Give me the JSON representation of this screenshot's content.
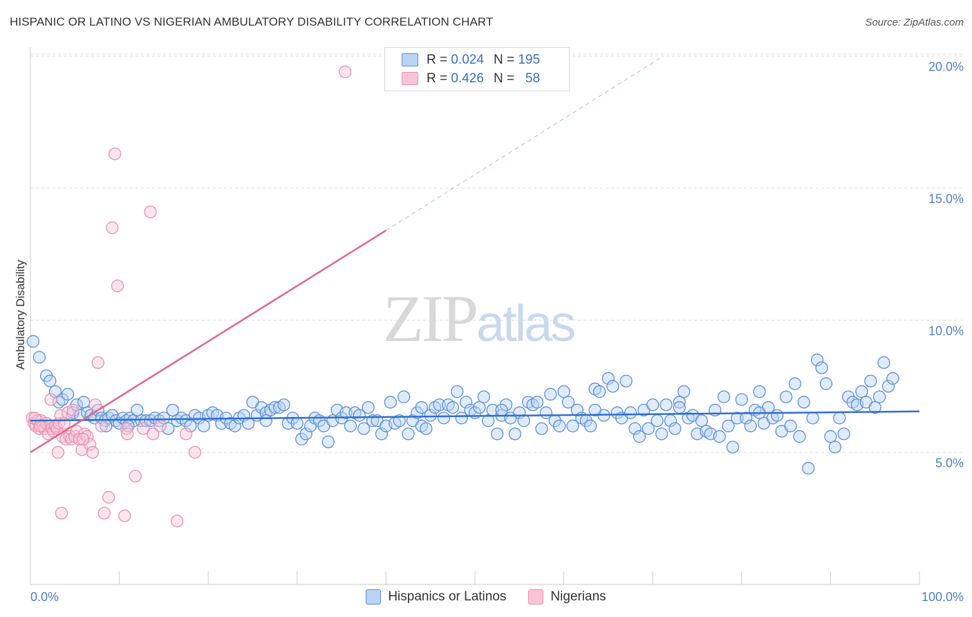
{
  "header": {
    "title": "HISPANIC OR LATINO VS NIGERIAN AMBULATORY DISABILITY CORRELATION CHART",
    "source": "Source: ZipAtlas.com"
  },
  "watermark": {
    "zip": "ZIP",
    "atlas": "atlas"
  },
  "legend": {
    "rows": [
      {
        "r_label": "R =",
        "r_value": "0.024",
        "n_label": "N =",
        "n_value": "195"
      },
      {
        "r_label": "R =",
        "r_value": "0.426",
        "n_label": "N =",
        "n_value": "58"
      }
    ]
  },
  "colors": {
    "blue_fill": "#b8d3f4",
    "blue_stroke": "#5b8fd6",
    "blue_line": "#2f6fd1",
    "pink_fill": "#f8c5d6",
    "pink_stroke": "#e891ad",
    "pink_line": "#e0678f",
    "grid": "#dddddd",
    "tick_label": "#4f7fc8"
  },
  "chart_data": {
    "type": "scatter",
    "title": "HISPANIC OR LATINO VS NIGERIAN AMBULATORY DISABILITY CORRELATION CHART",
    "xlabel": "",
    "ylabel": "Ambulatory Disability",
    "xlim": [
      0,
      100
    ],
    "ylim": [
      0,
      21
    ],
    "x_tick_labels": [
      "0.0%",
      "100.0%"
    ],
    "y_ticks": [
      5,
      10,
      15,
      20
    ],
    "y_tick_labels": [
      "5.0%",
      "10.0%",
      "15.0%",
      "20.0%"
    ],
    "legend_position": "top-center",
    "series": [
      {
        "name": "Hispanics or Latinos",
        "r": 0.024,
        "n": 195,
        "trend": {
          "x": [
            0,
            100
          ],
          "y": [
            6.2,
            6.55
          ]
        },
        "points": [
          [
            0.3,
            9.2
          ],
          [
            1.0,
            8.6
          ],
          [
            1.8,
            7.9
          ],
          [
            2.2,
            7.7
          ],
          [
            2.8,
            7.3
          ],
          [
            3.2,
            6.9
          ],
          [
            3.6,
            7.0
          ],
          [
            4.2,
            7.2
          ],
          [
            4.8,
            6.5
          ],
          [
            5.2,
            6.8
          ],
          [
            5.6,
            6.4
          ],
          [
            6.0,
            6.9
          ],
          [
            6.4,
            6.5
          ],
          [
            6.8,
            6.4
          ],
          [
            7.2,
            6.3
          ],
          [
            7.6,
            6.6
          ],
          [
            8.0,
            6.3
          ],
          [
            8.4,
            6.2
          ],
          [
            8.8,
            6.3
          ],
          [
            9.2,
            6.4
          ],
          [
            9.6,
            6.2
          ],
          [
            10.0,
            6.1
          ],
          [
            10.4,
            6.3
          ],
          [
            10.8,
            6.2
          ],
          [
            11.2,
            6.3
          ],
          [
            11.6,
            6.2
          ],
          [
            12.0,
            6.6
          ],
          [
            12.5,
            6.2
          ],
          [
            13.0,
            6.2
          ],
          [
            13.5,
            6.2
          ],
          [
            14.0,
            6.3
          ],
          [
            14.5,
            6.2
          ],
          [
            15.0,
            6.3
          ],
          [
            15.5,
            5.9
          ],
          [
            16.0,
            6.6
          ],
          [
            16.5,
            6.2
          ],
          [
            17.0,
            6.3
          ],
          [
            17.5,
            6.2
          ],
          [
            18.0,
            6.0
          ],
          [
            18.5,
            6.4
          ],
          [
            19.0,
            6.3
          ],
          [
            19.5,
            6.0
          ],
          [
            20.0,
            6.4
          ],
          [
            20.5,
            6.5
          ],
          [
            21.0,
            6.4
          ],
          [
            21.5,
            6.1
          ],
          [
            22.0,
            6.3
          ],
          [
            22.5,
            6.1
          ],
          [
            23.0,
            6.0
          ],
          [
            23.5,
            6.3
          ],
          [
            24.0,
            6.4
          ],
          [
            24.5,
            6.1
          ],
          [
            25.0,
            6.9
          ],
          [
            25.5,
            6.4
          ],
          [
            26.0,
            6.7
          ],
          [
            26.5,
            6.5
          ],
          [
            27.0,
            6.6
          ],
          [
            27.5,
            6.7
          ],
          [
            28.0,
            6.7
          ],
          [
            28.5,
            6.8
          ],
          [
            29.0,
            6.1
          ],
          [
            29.5,
            6.3
          ],
          [
            30.0,
            6.1
          ],
          [
            30.5,
            5.5
          ],
          [
            31.0,
            5.7
          ],
          [
            31.5,
            6.0
          ],
          [
            32.0,
            6.3
          ],
          [
            32.5,
            6.2
          ],
          [
            33.0,
            6.0
          ],
          [
            33.5,
            5.4
          ],
          [
            34.0,
            6.2
          ],
          [
            34.5,
            6.6
          ],
          [
            35.0,
            6.3
          ],
          [
            35.5,
            6.5
          ],
          [
            36.0,
            6.0
          ],
          [
            36.5,
            6.5
          ],
          [
            37.0,
            6.4
          ],
          [
            37.5,
            5.9
          ],
          [
            38.0,
            6.7
          ],
          [
            38.5,
            6.2
          ],
          [
            39.0,
            6.2
          ],
          [
            39.5,
            5.7
          ],
          [
            40.0,
            6.0
          ],
          [
            40.5,
            6.9
          ],
          [
            41.0,
            6.1
          ],
          [
            41.5,
            6.2
          ],
          [
            42.0,
            7.1
          ],
          [
            42.5,
            5.7
          ],
          [
            43.0,
            6.2
          ],
          [
            43.5,
            6.5
          ],
          [
            44.0,
            6.0
          ],
          [
            44.5,
            5.9
          ],
          [
            45.0,
            6.4
          ],
          [
            45.5,
            6.7
          ],
          [
            46.0,
            6.8
          ],
          [
            46.5,
            6.3
          ],
          [
            47.0,
            6.8
          ],
          [
            47.5,
            6.7
          ],
          [
            48.0,
            7.3
          ],
          [
            48.5,
            6.3
          ],
          [
            49.0,
            6.9
          ],
          [
            49.5,
            6.6
          ],
          [
            50.0,
            6.5
          ],
          [
            50.5,
            6.7
          ],
          [
            51.0,
            7.1
          ],
          [
            51.5,
            6.2
          ],
          [
            52.0,
            6.6
          ],
          [
            52.5,
            5.7
          ],
          [
            53.0,
            6.4
          ],
          [
            53.5,
            6.8
          ],
          [
            54.0,
            6.3
          ],
          [
            54.5,
            5.7
          ],
          [
            55.0,
            6.5
          ],
          [
            55.5,
            6.2
          ],
          [
            56.0,
            6.9
          ],
          [
            56.5,
            6.8
          ],
          [
            57.0,
            6.9
          ],
          [
            57.5,
            5.9
          ],
          [
            58.0,
            6.5
          ],
          [
            58.5,
            7.2
          ],
          [
            59.0,
            6.2
          ],
          [
            59.5,
            6.0
          ],
          [
            60.0,
            7.3
          ],
          [
            60.5,
            6.9
          ],
          [
            61.0,
            6.0
          ],
          [
            61.5,
            6.6
          ],
          [
            62.0,
            6.3
          ],
          [
            62.5,
            6.2
          ],
          [
            63.0,
            6.0
          ],
          [
            63.5,
            7.4
          ],
          [
            64.0,
            7.3
          ],
          [
            64.5,
            6.4
          ],
          [
            65.0,
            7.8
          ],
          [
            65.5,
            7.5
          ],
          [
            66.0,
            6.5
          ],
          [
            66.5,
            6.3
          ],
          [
            67.0,
            7.7
          ],
          [
            67.5,
            6.5
          ],
          [
            68.0,
            5.9
          ],
          [
            68.5,
            5.6
          ],
          [
            69.0,
            6.6
          ],
          [
            69.5,
            5.9
          ],
          [
            70.0,
            6.8
          ],
          [
            70.5,
            6.2
          ],
          [
            71.0,
            5.7
          ],
          [
            71.5,
            6.8
          ],
          [
            72.0,
            6.2
          ],
          [
            72.5,
            5.9
          ],
          [
            73.0,
            6.9
          ],
          [
            73.5,
            7.3
          ],
          [
            74.0,
            6.3
          ],
          [
            74.5,
            6.4
          ],
          [
            75.0,
            5.7
          ],
          [
            75.5,
            6.2
          ],
          [
            76.0,
            5.8
          ],
          [
            76.5,
            5.7
          ],
          [
            77.0,
            6.6
          ],
          [
            77.5,
            5.6
          ],
          [
            78.0,
            7.1
          ],
          [
            78.5,
            6.0
          ],
          [
            79.0,
            5.2
          ],
          [
            79.5,
            6.3
          ],
          [
            80.0,
            7.0
          ],
          [
            80.5,
            6.3
          ],
          [
            81.0,
            6.0
          ],
          [
            81.5,
            6.6
          ],
          [
            82.0,
            7.3
          ],
          [
            82.5,
            6.1
          ],
          [
            83.0,
            6.7
          ],
          [
            83.5,
            6.3
          ],
          [
            84.0,
            6.4
          ],
          [
            84.5,
            5.8
          ],
          [
            85.0,
            7.1
          ],
          [
            85.5,
            6.0
          ],
          [
            86.0,
            7.6
          ],
          [
            86.5,
            5.6
          ],
          [
            87.0,
            6.9
          ],
          [
            87.5,
            4.4
          ],
          [
            88.0,
            6.3
          ],
          [
            88.5,
            8.5
          ],
          [
            89.0,
            8.2
          ],
          [
            89.5,
            7.6
          ],
          [
            90.0,
            5.6
          ],
          [
            90.5,
            5.2
          ],
          [
            91.0,
            6.3
          ],
          [
            91.5,
            5.7
          ],
          [
            92.0,
            7.1
          ],
          [
            92.5,
            6.9
          ],
          [
            93.0,
            6.8
          ],
          [
            93.5,
            7.3
          ],
          [
            94.0,
            6.9
          ],
          [
            94.5,
            7.7
          ],
          [
            95.0,
            6.7
          ],
          [
            95.5,
            7.1
          ],
          [
            96.0,
            8.4
          ],
          [
            96.5,
            7.5
          ],
          [
            97.0,
            7.8
          ],
          [
            8.5,
            6.0
          ],
          [
            11.0,
            6.0
          ],
          [
            26.5,
            6.2
          ],
          [
            44.0,
            6.7
          ],
          [
            53.0,
            6.6
          ],
          [
            63.5,
            6.6
          ],
          [
            73.0,
            6.7
          ],
          [
            82.0,
            6.5
          ]
        ]
      },
      {
        "name": "Nigerians",
        "r": 0.426,
        "n": 58,
        "trend": {
          "x": [
            0,
            40
          ],
          "y": [
            5.0,
            13.4
          ]
        },
        "trend_extended": {
          "x": [
            40,
            71.2
          ],
          "y": [
            13.4,
            20.0
          ]
        },
        "points": [
          [
            0.2,
            6.3
          ],
          [
            0.4,
            6.1
          ],
          [
            0.6,
            6.0
          ],
          [
            0.8,
            6.2
          ],
          [
            1.0,
            5.9
          ],
          [
            1.2,
            6.2
          ],
          [
            1.4,
            6.0
          ],
          [
            1.6,
            5.9
          ],
          [
            1.8,
            6.1
          ],
          [
            2.0,
            5.7
          ],
          [
            2.2,
            6.0
          ],
          [
            2.4,
            5.9
          ],
          [
            2.6,
            5.8
          ],
          [
            2.8,
            6.0
          ],
          [
            3.0,
            5.9
          ],
          [
            3.2,
            6.1
          ],
          [
            0.5,
            6.3
          ],
          [
            1.1,
            6.0
          ],
          [
            2.3,
            7.0
          ],
          [
            3.4,
            6.4
          ],
          [
            3.6,
            5.6
          ],
          [
            3.8,
            6.1
          ],
          [
            4.0,
            5.5
          ],
          [
            4.2,
            6.5
          ],
          [
            4.4,
            5.6
          ],
          [
            4.6,
            5.5
          ],
          [
            4.8,
            6.6
          ],
          [
            5.0,
            5.6
          ],
          [
            5.2,
            5.8
          ],
          [
            5.5,
            5.5
          ],
          [
            5.8,
            5.1
          ],
          [
            6.1,
            5.7
          ],
          [
            6.4,
            5.6
          ],
          [
            6.7,
            5.3
          ],
          [
            7.0,
            5.0
          ],
          [
            7.3,
            6.8
          ],
          [
            7.6,
            8.4
          ],
          [
            8.0,
            6.0
          ],
          [
            8.3,
            2.7
          ],
          [
            8.8,
            3.3
          ],
          [
            9.5,
            16.3
          ],
          [
            9.2,
            13.5
          ],
          [
            9.8,
            11.3
          ],
          [
            10.6,
            2.6
          ],
          [
            10.8,
            5.9
          ],
          [
            10.9,
            5.7
          ],
          [
            11.8,
            4.1
          ],
          [
            12.7,
            5.9
          ],
          [
            13.5,
            14.1
          ],
          [
            13.8,
            5.7
          ],
          [
            14.6,
            6.0
          ],
          [
            16.5,
            2.4
          ],
          [
            17.5,
            5.7
          ],
          [
            18.5,
            5.0
          ],
          [
            35.4,
            19.4
          ],
          [
            3.1,
            5.0
          ],
          [
            3.5,
            2.7
          ],
          [
            5.9,
            5.5
          ]
        ]
      }
    ]
  },
  "bottom_legend": {
    "items": [
      {
        "label": "Hispanics or Latinos"
      },
      {
        "label": "Nigerians"
      }
    ]
  }
}
